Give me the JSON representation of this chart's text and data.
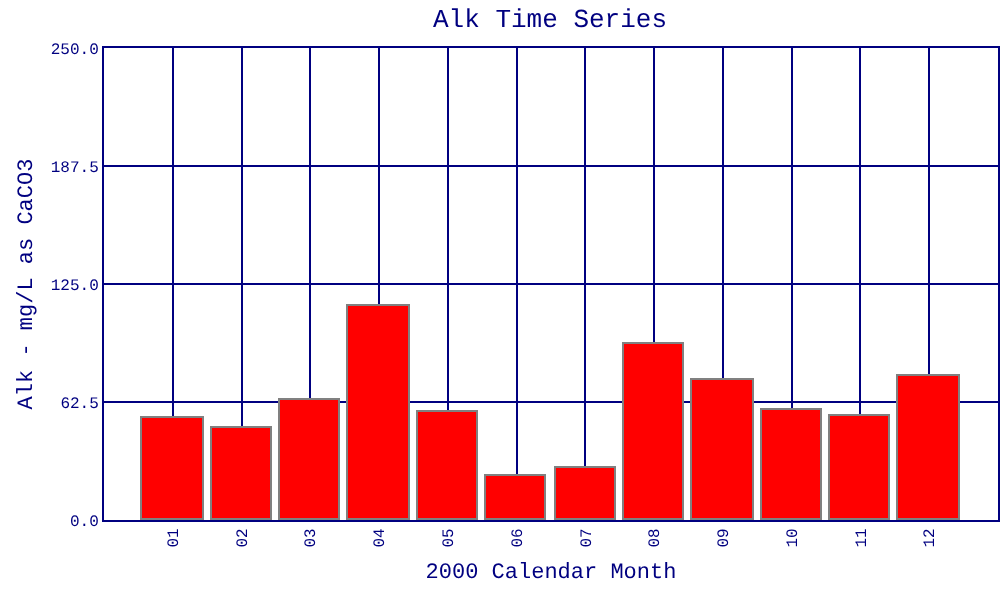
{
  "chart_data": {
    "type": "bar",
    "title": "Alk Time Series",
    "xlabel": "2000 Calendar Month",
    "ylabel": "Alk - mg/L as CaCO3",
    "categories": [
      "01",
      "02",
      "03",
      "04",
      "05",
      "06",
      "07",
      "08",
      "09",
      "10",
      "11",
      "12"
    ],
    "values": [
      54,
      49,
      64,
      113,
      57,
      23,
      28,
      93,
      74,
      58,
      55,
      76
    ],
    "color": "#ff0000",
    "ylim": [
      0,
      250
    ],
    "yticks": [
      {
        "value": 0,
        "label": "0.0"
      },
      {
        "value": 62.5,
        "label": "62.5"
      },
      {
        "value": 125,
        "label": "125.0"
      },
      {
        "value": 187.5,
        "label": "187.5"
      },
      {
        "value": 250,
        "label": "250.0"
      }
    ],
    "grid": true
  }
}
